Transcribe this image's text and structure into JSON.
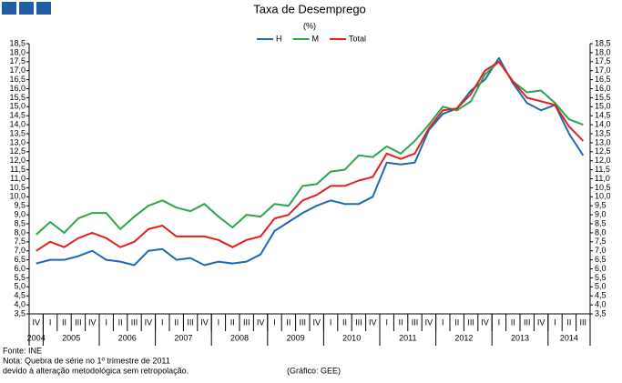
{
  "chart_data": {
    "type": "line",
    "title": "Taxa de Desemprego",
    "subtitle": "(%)",
    "category_groups": [
      {
        "label": "2004",
        "categories": [
          "IV"
        ]
      },
      {
        "label": "2005",
        "categories": [
          "I",
          "II",
          "III",
          "IV"
        ]
      },
      {
        "label": "2006",
        "categories": [
          "I",
          "II",
          "III",
          "IV"
        ]
      },
      {
        "label": "2007",
        "categories": [
          "I",
          "II",
          "III",
          "IV"
        ]
      },
      {
        "label": "2008",
        "categories": [
          "I",
          "II",
          "III",
          "IV"
        ]
      },
      {
        "label": "2009",
        "categories": [
          "I",
          "II",
          "III",
          "IV"
        ]
      },
      {
        "label": "2010",
        "categories": [
          "I",
          "II",
          "III",
          "IV"
        ]
      },
      {
        "label": "2011",
        "categories": [
          "I",
          "II",
          "III",
          "IV"
        ]
      },
      {
        "label": "2012",
        "categories": [
          "I",
          "II",
          "III",
          "IV"
        ]
      },
      {
        "label": "2013",
        "categories": [
          "I",
          "II",
          "III",
          "IV"
        ]
      },
      {
        "label": "2014",
        "categories": [
          "I",
          "II",
          "III"
        ]
      }
    ],
    "series": [
      {
        "name": "H",
        "color": "#1f6bb0",
        "values": [
          6.3,
          6.5,
          6.5,
          6.7,
          7.0,
          6.5,
          6.4,
          6.2,
          7.0,
          7.1,
          6.5,
          6.6,
          6.2,
          6.4,
          6.3,
          6.4,
          6.8,
          8.1,
          8.6,
          9.1,
          9.5,
          9.8,
          9.6,
          9.6,
          10.0,
          11.9,
          11.8,
          11.9,
          13.7,
          14.6,
          14.9,
          15.9,
          16.5,
          17.7,
          16.3,
          15.2,
          14.8,
          15.1,
          13.5,
          12.3
        ]
      },
      {
        "name": "M",
        "color": "#2ea44f",
        "values": [
          7.9,
          8.6,
          8.0,
          8.8,
          9.1,
          9.1,
          8.2,
          8.9,
          9.5,
          9.8,
          9.4,
          9.2,
          9.6,
          8.9,
          8.3,
          9.0,
          8.9,
          9.6,
          9.5,
          10.6,
          10.7,
          11.4,
          11.5,
          12.3,
          12.2,
          12.8,
          12.4,
          13.1,
          14.0,
          15.0,
          14.8,
          15.3,
          16.8,
          17.5,
          16.4,
          15.8,
          15.9,
          15.2,
          14.3,
          14.0
        ]
      },
      {
        "name": "Total",
        "color": "#e2211c",
        "values": [
          7.0,
          7.5,
          7.2,
          7.7,
          8.0,
          7.7,
          7.2,
          7.5,
          8.2,
          8.4,
          7.8,
          7.8,
          7.8,
          7.6,
          7.2,
          7.6,
          7.8,
          8.8,
          9.0,
          9.8,
          10.1,
          10.6,
          10.6,
          10.9,
          11.1,
          12.4,
          12.1,
          12.4,
          13.8,
          14.8,
          14.9,
          15.7,
          17.0,
          17.5,
          16.4,
          15.5,
          15.3,
          15.1,
          13.9,
          13.1
        ]
      }
    ],
    "ylim": [
      3.5,
      18.5
    ],
    "yticks": [
      {
        "value": 3.5,
        "label": "3,5"
      },
      {
        "value": 4,
        "label": "4,0"
      },
      {
        "value": 4.5,
        "label": "4,5"
      },
      {
        "value": 5,
        "label": "5,0"
      },
      {
        "value": 5.5,
        "label": "5,5"
      },
      {
        "value": 6,
        "label": "6,0"
      },
      {
        "value": 6.5,
        "label": "6,5"
      },
      {
        "value": 7,
        "label": "7,0"
      },
      {
        "value": 7.5,
        "label": "7,5"
      },
      {
        "value": 8,
        "label": "8,0"
      },
      {
        "value": 8.5,
        "label": "8,5"
      },
      {
        "value": 9,
        "label": "9,0"
      },
      {
        "value": 9.5,
        "label": "9,5"
      },
      {
        "value": 10,
        "label": "10,0"
      },
      {
        "value": 10.5,
        "label": "10,5"
      },
      {
        "value": 11,
        "label": "11,0"
      },
      {
        "value": 11.5,
        "label": "11,5"
      },
      {
        "value": 12,
        "label": "12,0"
      },
      {
        "value": 12.5,
        "label": "12,5"
      },
      {
        "value": 13,
        "label": "13,0"
      },
      {
        "value": 13.5,
        "label": "13,5"
      },
      {
        "value": 14,
        "label": "14,0"
      },
      {
        "value": 14.5,
        "label": "14,5"
      },
      {
        "value": 15,
        "label": "15,0"
      },
      {
        "value": 15.5,
        "label": "15,5"
      },
      {
        "value": 16,
        "label": "16,0"
      },
      {
        "value": 16.5,
        "label": "16,5"
      },
      {
        "value": 17,
        "label": "17,0"
      },
      {
        "value": 17.5,
        "label": "17,5"
      },
      {
        "value": 18,
        "label": "18,0"
      },
      {
        "value": 18.5,
        "label": "18,5"
      }
    ],
    "y2lim": [
      3.5,
      18.5
    ],
    "y2ticks": [
      {
        "value": 3.5,
        "label": "3,5"
      },
      {
        "value": 4,
        "label": "4,0"
      },
      {
        "value": 4.5,
        "label": "4,5"
      },
      {
        "value": 5,
        "label": "5,0"
      },
      {
        "value": 5.5,
        "label": "5,5"
      },
      {
        "value": 6,
        "label": "6,0"
      },
      {
        "value": 6.5,
        "label": "6,5"
      },
      {
        "value": 7,
        "label": "7,0"
      },
      {
        "value": 7.5,
        "label": "7,5"
      },
      {
        "value": 8,
        "label": "8,0"
      },
      {
        "value": 8.5,
        "label": "8,5"
      },
      {
        "value": 9,
        "label": "9,0"
      },
      {
        "value": 9.5,
        "label": "9,5"
      },
      {
        "value": 10,
        "label": "10,0"
      },
      {
        "value": 10.5,
        "label": "10,5"
      },
      {
        "value": 11,
        "label": "11,0"
      },
      {
        "value": 11.5,
        "label": "11,5"
      },
      {
        "value": 12,
        "label": "12,0"
      },
      {
        "value": 12.5,
        "label": "12,5"
      },
      {
        "value": 13,
        "label": "13,0"
      },
      {
        "value": 13.5,
        "label": "13,5"
      },
      {
        "value": 14,
        "label": "14,0"
      },
      {
        "value": 14.5,
        "label": "14,5"
      },
      {
        "value": 15,
        "label": "15,0"
      },
      {
        "value": 15.5,
        "label": "15,5"
      },
      {
        "value": 16,
        "label": "16,0"
      },
      {
        "value": 16.5,
        "label": "16,5"
      },
      {
        "value": 17,
        "label": "17,0"
      },
      {
        "value": 17.5,
        "label": "17,5"
      },
      {
        "value": 18,
        "label": "18,0"
      },
      {
        "value": 18.5,
        "label": "18,5"
      }
    ],
    "grid": false,
    "legend": "top",
    "notes": [
      "Fonte: INE",
      "Nota: Quebra de série no 1º trimestre de 2011",
      "devido à alteração metodológica sem retropolação."
    ],
    "credit": "(Gráfico: GEE)"
  }
}
